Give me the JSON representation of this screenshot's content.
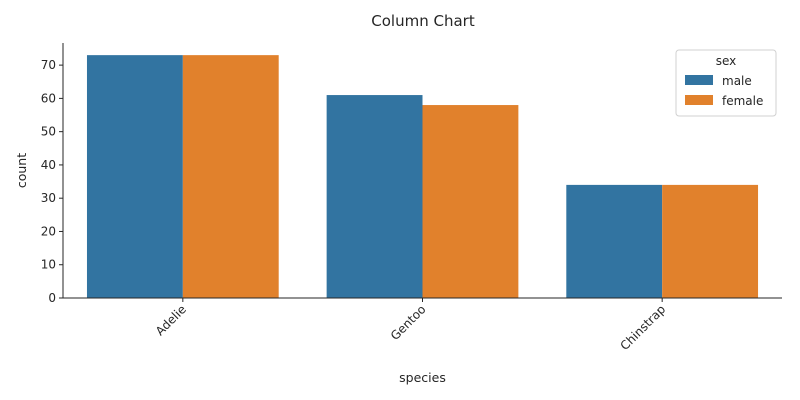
{
  "chart_data": {
    "type": "bar",
    "title": "Column Chart",
    "xlabel": "species",
    "ylabel": "count",
    "categories": [
      "Adelie",
      "Gentoo",
      "Chinstrap"
    ],
    "series": [
      {
        "name": "male",
        "color": "#3274a1",
        "values": [
          73,
          61,
          34
        ]
      },
      {
        "name": "female",
        "color": "#e1812c",
        "values": [
          73,
          58,
          34
        ]
      }
    ],
    "ylim": [
      0,
      76.65
    ],
    "yticks": [
      0,
      10,
      20,
      30,
      40,
      50,
      60,
      70
    ],
    "grid": false,
    "legend": {
      "title": "sex",
      "placement": "top-right"
    }
  }
}
